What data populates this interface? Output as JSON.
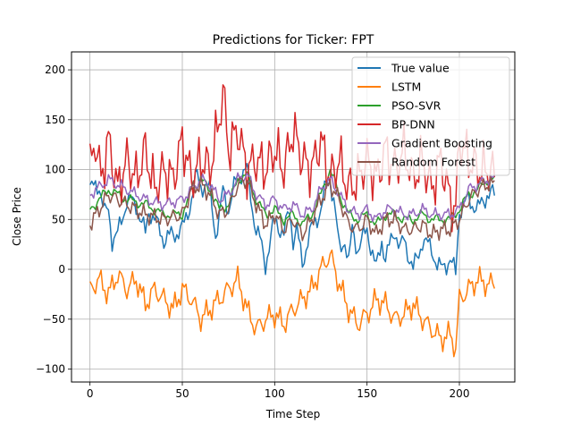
{
  "chart_data": {
    "type": "line",
    "title": "Predictions for Ticker: FPT",
    "xlabel": "Time Step",
    "ylabel": "Close Price",
    "xlim": [
      -10,
      230
    ],
    "ylim": [
      -113,
      218
    ],
    "xticks": [
      0,
      50,
      100,
      150,
      200
    ],
    "yticks": [
      -100,
      -50,
      0,
      50,
      100,
      150,
      200
    ],
    "grid": true,
    "legend_position": "top-right",
    "x_count": 220,
    "series": [
      {
        "name": "True value",
        "color": "#1f77b4",
        "control": [
          [
            0,
            80
          ],
          [
            5,
            85
          ],
          [
            8,
            55
          ],
          [
            10,
            60
          ],
          [
            12,
            30
          ],
          [
            15,
            35
          ],
          [
            18,
            55
          ],
          [
            20,
            70
          ],
          [
            25,
            65
          ],
          [
            30,
            35
          ],
          [
            32,
            60
          ],
          [
            35,
            50
          ],
          [
            40,
            30
          ],
          [
            45,
            35
          ],
          [
            50,
            40
          ],
          [
            55,
            70
          ],
          [
            58,
            95
          ],
          [
            60,
            85
          ],
          [
            65,
            80
          ],
          [
            68,
            35
          ],
          [
            70,
            50
          ],
          [
            72,
            80
          ],
          [
            75,
            60
          ],
          [
            80,
            95
          ],
          [
            85,
            100
          ],
          [
            88,
            60
          ],
          [
            90,
            40
          ],
          [
            92,
            30
          ],
          [
            95,
            5
          ],
          [
            100,
            50
          ],
          [
            105,
            35
          ],
          [
            108,
            60
          ],
          [
            110,
            30
          ],
          [
            112,
            40
          ],
          [
            115,
            5
          ],
          [
            118,
            30
          ],
          [
            120,
            40
          ],
          [
            125,
            60
          ],
          [
            128,
            85
          ],
          [
            130,
            90
          ],
          [
            132,
            70
          ],
          [
            135,
            20
          ],
          [
            138,
            30
          ],
          [
            140,
            5
          ],
          [
            142,
            40
          ],
          [
            145,
            20
          ],
          [
            150,
            40
          ],
          [
            155,
            0
          ],
          [
            158,
            30
          ],
          [
            160,
            10
          ],
          [
            165,
            40
          ],
          [
            168,
            20
          ],
          [
            170,
            30
          ],
          [
            175,
            0
          ],
          [
            178,
            15
          ],
          [
            180,
            30
          ],
          [
            185,
            20
          ],
          [
            188,
            5
          ],
          [
            190,
            0
          ],
          [
            195,
            10
          ],
          [
            198,
            -5
          ],
          [
            200,
            60
          ],
          [
            205,
            70
          ],
          [
            210,
            60
          ],
          [
            215,
            75
          ],
          [
            219,
            75
          ]
        ],
        "noise": 12,
        "freq": 0.9,
        "phase": 0.3
      },
      {
        "name": "LSTM",
        "color": "#ff7f0e",
        "control": [
          [
            0,
            -20
          ],
          [
            5,
            -10
          ],
          [
            10,
            -25
          ],
          [
            15,
            -5
          ],
          [
            20,
            -20
          ],
          [
            25,
            -10
          ],
          [
            30,
            -35
          ],
          [
            35,
            -20
          ],
          [
            40,
            -30
          ],
          [
            45,
            -40
          ],
          [
            50,
            -20
          ],
          [
            55,
            -30
          ],
          [
            60,
            -50
          ],
          [
            65,
            -40
          ],
          [
            70,
            -30
          ],
          [
            75,
            -20
          ],
          [
            80,
            -10
          ],
          [
            85,
            -40
          ],
          [
            90,
            -60
          ],
          [
            95,
            -50
          ],
          [
            100,
            -45
          ],
          [
            105,
            -55
          ],
          [
            110,
            -40
          ],
          [
            115,
            -30
          ],
          [
            120,
            -20
          ],
          [
            125,
            0
          ],
          [
            130,
            15
          ],
          [
            135,
            -15
          ],
          [
            140,
            -40
          ],
          [
            145,
            -55
          ],
          [
            150,
            -45
          ],
          [
            155,
            -30
          ],
          [
            160,
            -35
          ],
          [
            165,
            -50
          ],
          [
            170,
            -45
          ],
          [
            175,
            -35
          ],
          [
            180,
            -50
          ],
          [
            185,
            -60
          ],
          [
            190,
            -70
          ],
          [
            195,
            -65
          ],
          [
            198,
            -80
          ],
          [
            200,
            -30
          ],
          [
            205,
            -20
          ],
          [
            210,
            -10
          ],
          [
            215,
            -15
          ],
          [
            219,
            -15
          ]
        ],
        "noise": 14,
        "freq": 1.1,
        "phase": 1.7
      },
      {
        "name": "PSO-SVR",
        "color": "#2ca02c",
        "control": [
          [
            0,
            60
          ],
          [
            10,
            80
          ],
          [
            20,
            70
          ],
          [
            30,
            65
          ],
          [
            40,
            55
          ],
          [
            50,
            55
          ],
          [
            55,
            80
          ],
          [
            60,
            90
          ],
          [
            65,
            80
          ],
          [
            70,
            60
          ],
          [
            75,
            65
          ],
          [
            80,
            90
          ],
          [
            85,
            95
          ],
          [
            90,
            70
          ],
          [
            95,
            55
          ],
          [
            100,
            60
          ],
          [
            105,
            50
          ],
          [
            110,
            55
          ],
          [
            115,
            45
          ],
          [
            120,
            55
          ],
          [
            125,
            75
          ],
          [
            130,
            100
          ],
          [
            135,
            75
          ],
          [
            140,
            55
          ],
          [
            145,
            50
          ],
          [
            150,
            55
          ],
          [
            155,
            45
          ],
          [
            160,
            55
          ],
          [
            165,
            55
          ],
          [
            170,
            50
          ],
          [
            175,
            50
          ],
          [
            180,
            55
          ],
          [
            185,
            50
          ],
          [
            190,
            50
          ],
          [
            195,
            50
          ],
          [
            200,
            60
          ],
          [
            205,
            75
          ],
          [
            210,
            80
          ],
          [
            215,
            90
          ],
          [
            219,
            90
          ]
        ],
        "noise": 6,
        "freq": 0.8,
        "phase": 2.4
      },
      {
        "name": "BP-DNN",
        "color": "#d62728",
        "control": [
          [
            0,
            100
          ],
          [
            3,
            130
          ],
          [
            6,
            90
          ],
          [
            10,
            130
          ],
          [
            15,
            80
          ],
          [
            20,
            110
          ],
          [
            25,
            90
          ],
          [
            30,
            120
          ],
          [
            35,
            80
          ],
          [
            40,
            100
          ],
          [
            45,
            90
          ],
          [
            50,
            130
          ],
          [
            55,
            90
          ],
          [
            60,
            110
          ],
          [
            65,
            100
          ],
          [
            70,
            150
          ],
          [
            72,
            180
          ],
          [
            75,
            120
          ],
          [
            80,
            140
          ],
          [
            85,
            100
          ],
          [
            90,
            110
          ],
          [
            95,
            100
          ],
          [
            100,
            120
          ],
          [
            105,
            100
          ],
          [
            110,
            140
          ],
          [
            115,
            110
          ],
          [
            120,
            100
          ],
          [
            125,
            130
          ],
          [
            130,
            90
          ],
          [
            135,
            110
          ],
          [
            140,
            80
          ],
          [
            145,
            90
          ],
          [
            150,
            110
          ],
          [
            155,
            90
          ],
          [
            160,
            120
          ],
          [
            165,
            100
          ],
          [
            170,
            120
          ],
          [
            175,
            90
          ],
          [
            180,
            110
          ],
          [
            185,
            80
          ],
          [
            190,
            110
          ],
          [
            195,
            70
          ],
          [
            198,
            60
          ],
          [
            200,
            130
          ],
          [
            205,
            110
          ],
          [
            210,
            100
          ],
          [
            215,
            100
          ],
          [
            219,
            95
          ]
        ],
        "noise": 30,
        "freq": 1.3,
        "phase": 0.9
      },
      {
        "name": "Gradient Boosting",
        "color": "#9467bd",
        "control": [
          [
            0,
            75
          ],
          [
            10,
            90
          ],
          [
            20,
            80
          ],
          [
            30,
            70
          ],
          [
            40,
            65
          ],
          [
            50,
            70
          ],
          [
            55,
            80
          ],
          [
            60,
            90
          ],
          [
            65,
            85
          ],
          [
            70,
            70
          ],
          [
            75,
            75
          ],
          [
            80,
            90
          ],
          [
            85,
            95
          ],
          [
            90,
            75
          ],
          [
            95,
            65
          ],
          [
            100,
            70
          ],
          [
            105,
            60
          ],
          [
            110,
            65
          ],
          [
            115,
            55
          ],
          [
            120,
            60
          ],
          [
            125,
            80
          ],
          [
            130,
            90
          ],
          [
            135,
            75
          ],
          [
            140,
            60
          ],
          [
            145,
            55
          ],
          [
            150,
            60
          ],
          [
            155,
            50
          ],
          [
            160,
            60
          ],
          [
            165,
            60
          ],
          [
            170,
            55
          ],
          [
            175,
            55
          ],
          [
            180,
            60
          ],
          [
            185,
            55
          ],
          [
            190,
            55
          ],
          [
            195,
            55
          ],
          [
            200,
            60
          ],
          [
            205,
            80
          ],
          [
            210,
            85
          ],
          [
            215,
            90
          ],
          [
            219,
            90
          ]
        ],
        "noise": 7,
        "freq": 1.0,
        "phase": 3.1
      },
      {
        "name": "Random Forest",
        "color": "#8c564b",
        "control": [
          [
            0,
            45
          ],
          [
            10,
            75
          ],
          [
            20,
            65
          ],
          [
            30,
            55
          ],
          [
            40,
            50
          ],
          [
            50,
            55
          ],
          [
            55,
            80
          ],
          [
            60,
            85
          ],
          [
            65,
            75
          ],
          [
            70,
            55
          ],
          [
            75,
            60
          ],
          [
            80,
            85
          ],
          [
            85,
            90
          ],
          [
            90,
            65
          ],
          [
            95,
            45
          ],
          [
            100,
            55
          ],
          [
            105,
            40
          ],
          [
            110,
            50
          ],
          [
            115,
            35
          ],
          [
            120,
            50
          ],
          [
            125,
            70
          ],
          [
            130,
            85
          ],
          [
            135,
            70
          ],
          [
            140,
            45
          ],
          [
            145,
            40
          ],
          [
            150,
            50
          ],
          [
            155,
            35
          ],
          [
            160,
            50
          ],
          [
            165,
            50
          ],
          [
            170,
            40
          ],
          [
            175,
            40
          ],
          [
            180,
            45
          ],
          [
            185,
            35
          ],
          [
            190,
            40
          ],
          [
            195,
            40
          ],
          [
            200,
            50
          ],
          [
            205,
            70
          ],
          [
            210,
            80
          ],
          [
            215,
            85
          ],
          [
            219,
            85
          ]
        ],
        "noise": 10,
        "freq": 1.2,
        "phase": 4.2
      }
    ]
  }
}
